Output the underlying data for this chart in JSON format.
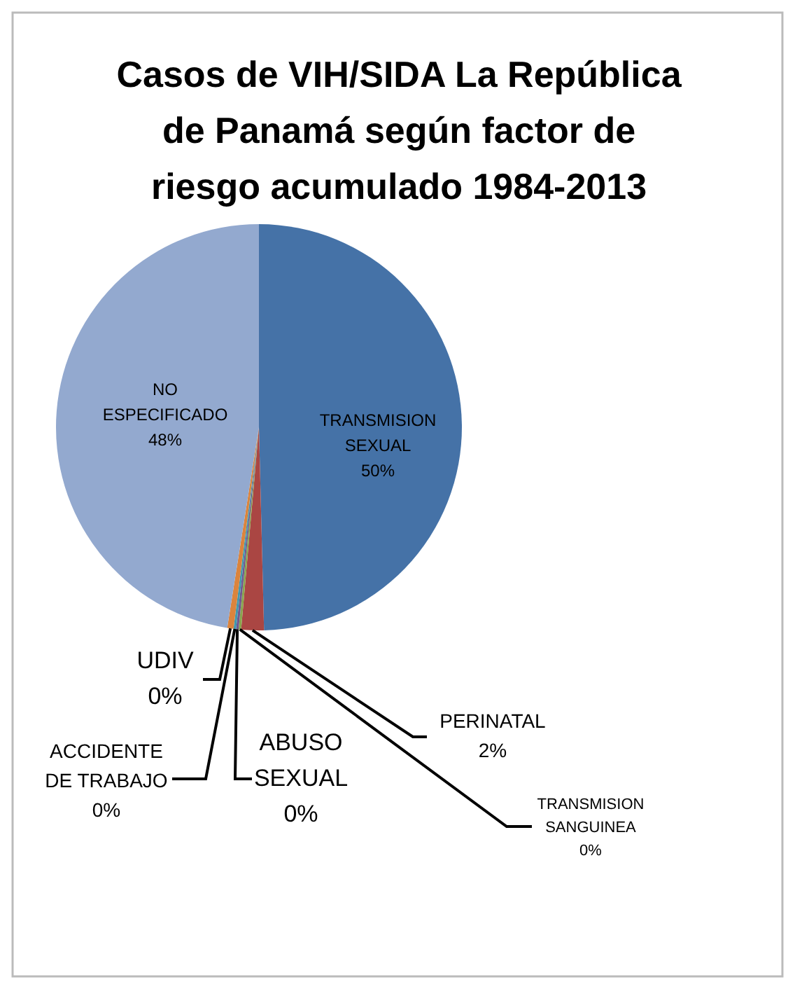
{
  "chart_data": {
    "type": "pie",
    "title": "Casos de VIH/SIDA La República de Panamá según factor de riesgo acumulado 1984-2013",
    "categories": [
      "TRANSMISION SEXUAL",
      "PERINATAL",
      "TRANSMISION SANGUINEA",
      "ABUSO SEXUAL",
      "ACCIDENTE DE TRABAJO",
      "UDIV",
      "NO ESPECIFICADO"
    ],
    "values": [
      49.6,
      1.8,
      0.2,
      0.2,
      0.2,
      0.5,
      47.5
    ],
    "value_labels": [
      "50%",
      "2%",
      "0%",
      "0%",
      "0%",
      "0%",
      "48%"
    ],
    "colors": [
      "#4572a7",
      "#aa4643",
      "#89a54e",
      "#71588f",
      "#4198af",
      "#db843d",
      "#93a9cf"
    ]
  }
}
